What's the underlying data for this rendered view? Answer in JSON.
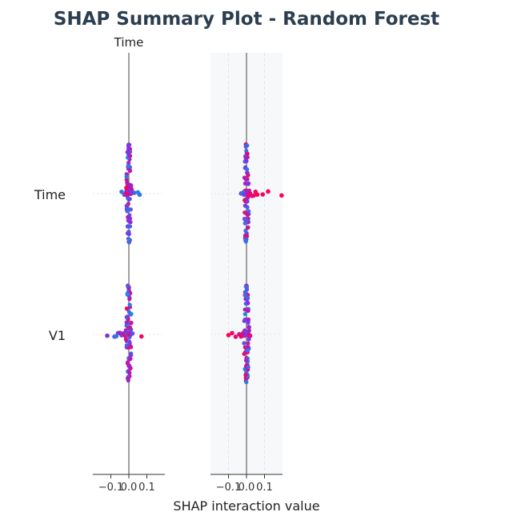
{
  "chart_data": {
    "type": "scatter",
    "title": "SHAP Summary Plot - Random Forest",
    "xlabel": "SHAP interaction value",
    "features": [
      "Time",
      "V1"
    ],
    "colors": {
      "low": "#1e88e5",
      "high": "#ff0052",
      "mid": "#8a2be2"
    },
    "panels": [
      {
        "subtitle": "Time",
        "xlim": [
          -0.2,
          0.2
        ],
        "xticks": [
          -0.1,
          0.0,
          0.1
        ],
        "xtick_labels": [
          "−0.1",
          "0.0",
          "0.1"
        ],
        "grid": false,
        "background": "#ffffff",
        "rows": [
          {
            "feature": "Time",
            "points": [
              {
                "x": -0.04,
                "c": 0.1
              },
              {
                "x": -0.025,
                "c": 0.3
              },
              {
                "x": -0.01,
                "c": 0.6
              },
              {
                "x": 0.0,
                "c": 0.5
              },
              {
                "x": 0.01,
                "c": 0.8
              },
              {
                "x": 0.02,
                "c": 0.7
              },
              {
                "x": 0.03,
                "c": 0.2
              },
              {
                "x": 0.05,
                "c": 0.0
              },
              {
                "x": 0.06,
                "c": 0.1
              },
              {
                "x": -0.015,
                "c": 0.9
              },
              {
                "x": 0.015,
                "c": 0.4
              }
            ]
          },
          {
            "feature": "V1",
            "points": [
              {
                "x": -0.12,
                "c": 0.5
              },
              {
                "x": -0.08,
                "c": 0.2
              },
              {
                "x": -0.07,
                "c": 0.1
              },
              {
                "x": -0.06,
                "c": 0.3
              },
              {
                "x": -0.05,
                "c": 0.6
              },
              {
                "x": -0.04,
                "c": 0.4
              },
              {
                "x": -0.03,
                "c": 0.7
              },
              {
                "x": -0.02,
                "c": 0.9
              },
              {
                "x": -0.01,
                "c": 0.2
              },
              {
                "x": 0.0,
                "c": 0.8
              },
              {
                "x": 0.01,
                "c": 0.6
              },
              {
                "x": 0.02,
                "c": 0.3
              },
              {
                "x": 0.07,
                "c": 0.95
              }
            ]
          }
        ]
      },
      {
        "subtitle": "",
        "xlim": [
          -0.2,
          0.2
        ],
        "xticks": [
          -0.1,
          0.0,
          0.1
        ],
        "xtick_labels": [
          "−0.1",
          "0.0",
          "0.1"
        ],
        "grid": true,
        "background": "#f7f8fa",
        "rows": [
          {
            "feature": "Time",
            "points": [
              {
                "x": -0.03,
                "c": 0.2
              },
              {
                "x": -0.01,
                "c": 0.4
              },
              {
                "x": 0.0,
                "c": 0.5
              },
              {
                "x": 0.01,
                "c": 0.9
              },
              {
                "x": 0.02,
                "c": 0.95
              },
              {
                "x": 0.03,
                "c": 0.9
              },
              {
                "x": 0.04,
                "c": 0.85
              },
              {
                "x": 0.05,
                "c": 0.9
              },
              {
                "x": 0.06,
                "c": 1.0
              },
              {
                "x": 0.09,
                "c": 0.95
              },
              {
                "x": 0.12,
                "c": 1.0
              },
              {
                "x": 0.195,
                "c": 1.0
              }
            ]
          },
          {
            "feature": "V1",
            "points": [
              {
                "x": -0.1,
                "c": 1.0
              },
              {
                "x": -0.08,
                "c": 0.95
              },
              {
                "x": -0.06,
                "c": 0.9
              },
              {
                "x": -0.04,
                "c": 0.85
              },
              {
                "x": -0.03,
                "c": 0.9
              },
              {
                "x": -0.02,
                "c": 0.8
              },
              {
                "x": -0.01,
                "c": 0.7
              },
              {
                "x": 0.0,
                "c": 0.4
              },
              {
                "x": 0.01,
                "c": 0.6
              },
              {
                "x": 0.02,
                "c": 0.9
              }
            ]
          }
        ]
      }
    ]
  }
}
